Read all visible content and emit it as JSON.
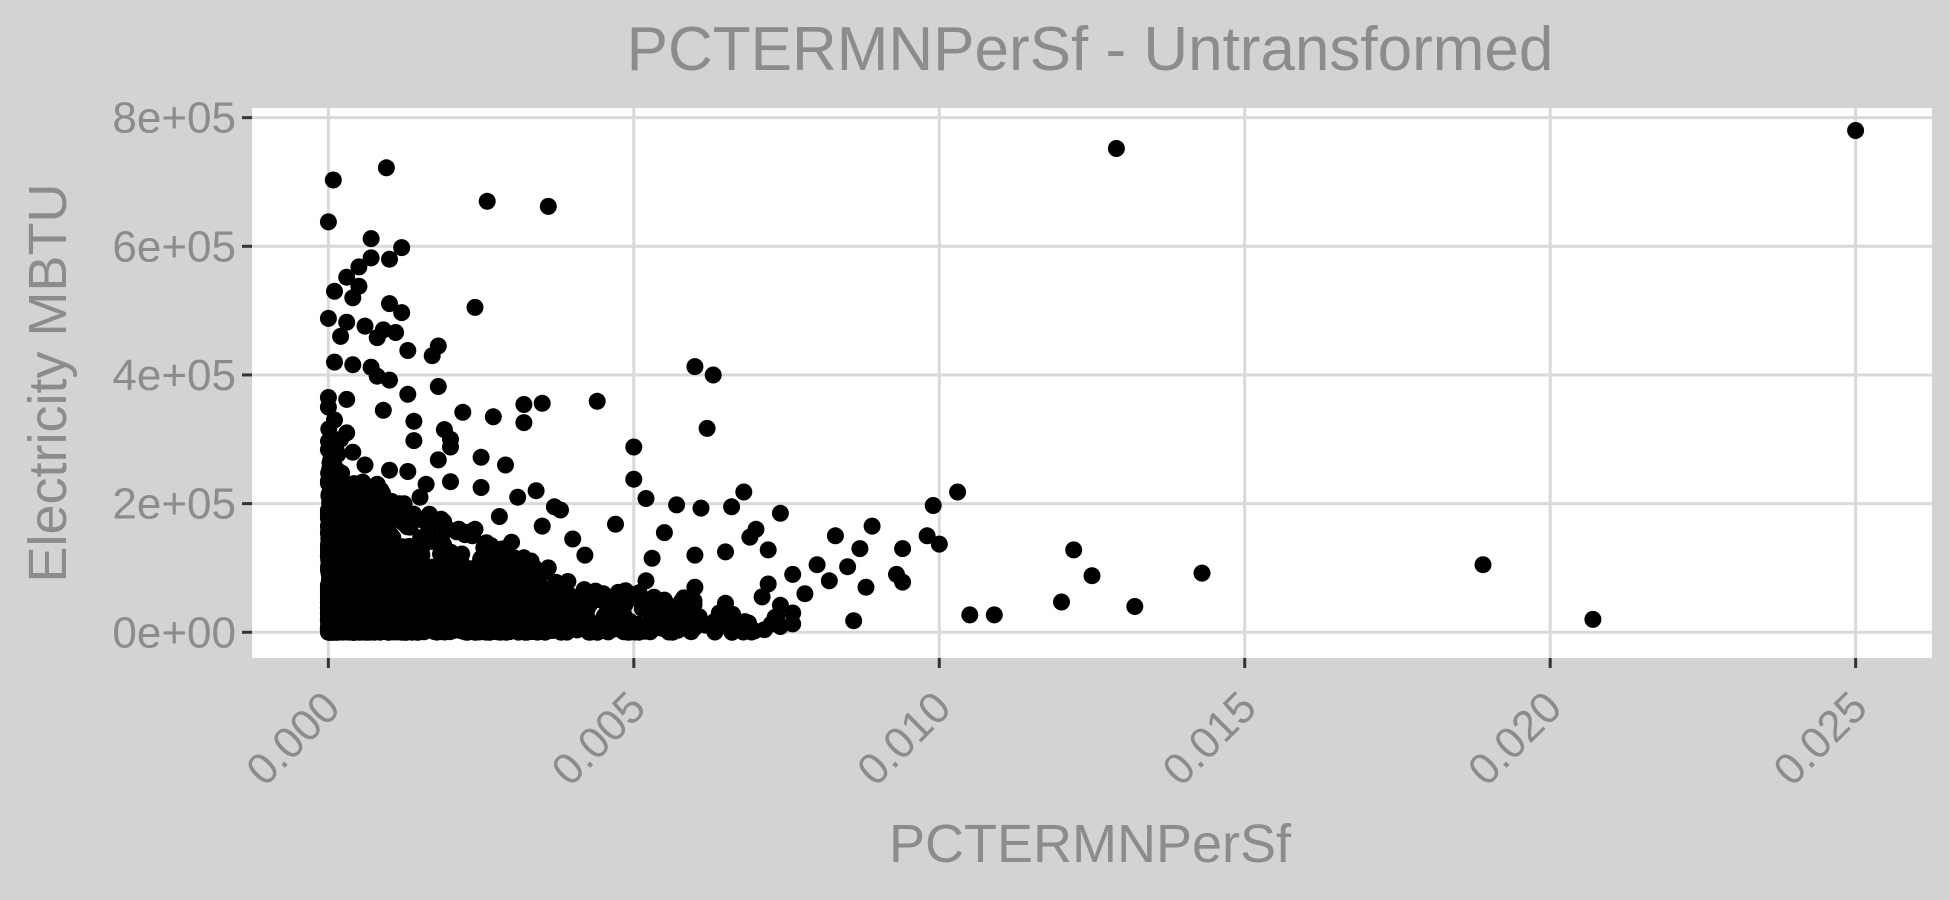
{
  "chart_data": {
    "type": "scatter",
    "title": "PCTERMNPerSf - Untransformed",
    "xlabel": "PCTERMNPerSf",
    "ylabel": "Electricity MBTU",
    "xlim": [
      -0.00125,
      0.02625
    ],
    "ylim": [
      -40000,
      815000
    ],
    "x_ticks": [
      0.0,
      0.005,
      0.01,
      0.015,
      0.02,
      0.025
    ],
    "x_tick_labels": [
      "0.000",
      "0.005",
      "0.010",
      "0.015",
      "0.020",
      "0.025"
    ],
    "y_ticks": [
      0,
      200000,
      400000,
      600000,
      800000
    ],
    "y_tick_labels": [
      "0e+00",
      "2e+05",
      "4e+05",
      "6e+05",
      "8e+05"
    ],
    "grid": true,
    "panel_background": "#ffffff",
    "plot_background": "#d3d3d3",
    "grid_color": "#d9d9d9",
    "point_color": "#000000",
    "points": [
      [
        0.025,
        780000
      ],
      [
        0.0129,
        752000
      ],
      [
        0.00095,
        722000
      ],
      [
        8e-05,
        703000
      ],
      [
        0.0026,
        670000
      ],
      [
        0.0036,
        662000
      ],
      [
        0.0,
        638000
      ],
      [
        0.0007,
        612000
      ],
      [
        0.0012,
        598000
      ],
      [
        0.001,
        580000
      ],
      [
        0.0007,
        582000
      ],
      [
        0.0005,
        568000
      ],
      [
        0.0003,
        552000
      ],
      [
        0.0005,
        538000
      ],
      [
        0.0001,
        530000
      ],
      [
        0.0004,
        520000
      ],
      [
        0.001,
        511000
      ],
      [
        0.0024,
        505000
      ],
      [
        0.0012,
        497000
      ],
      [
        0.0,
        488000
      ],
      [
        0.0003,
        482000
      ],
      [
        0.0006,
        476000
      ],
      [
        0.0009,
        470000
      ],
      [
        0.0011,
        466000
      ],
      [
        0.0002,
        460000
      ],
      [
        0.0008,
        458000
      ],
      [
        0.0018,
        445000
      ],
      [
        0.0013,
        438000
      ],
      [
        0.0017,
        430000
      ],
      [
        0.0001,
        420000
      ],
      [
        0.0004,
        416000
      ],
      [
        0.0007,
        412000
      ],
      [
        0.006,
        413000
      ],
      [
        0.0063,
        400000
      ],
      [
        0.0008,
        398000
      ],
      [
        0.001,
        392000
      ],
      [
        0.0018,
        382000
      ],
      [
        0.0013,
        370000
      ],
      [
        0.0,
        365000
      ],
      [
        0.0003,
        362000
      ],
      [
        0.0044,
        359000
      ],
      [
        0.0035,
        356000
      ],
      [
        0.0032,
        354000
      ],
      [
        0.0022,
        342000
      ],
      [
        0.0027,
        335000
      ],
      [
        0.0014,
        328000
      ],
      [
        0.0032,
        326000
      ],
      [
        0.0062,
        317000
      ],
      [
        0.0019,
        315000
      ],
      [
        0.002,
        300000
      ],
      [
        0.0014,
        298000
      ],
      [
        0.005,
        288000
      ],
      [
        0.002,
        288000
      ],
      [
        0.0025,
        272000
      ],
      [
        0.0018,
        268000
      ],
      [
        0.0029,
        260000
      ],
      [
        0.001,
        252000
      ],
      [
        0.0013,
        250000
      ],
      [
        0.005,
        238000
      ],
      [
        0.0002,
        240000
      ],
      [
        0.002,
        234000
      ],
      [
        0.0025,
        225000
      ],
      [
        0.0068,
        218000
      ],
      [
        0.0103,
        218000
      ],
      [
        0.0034,
        220000
      ],
      [
        0.0031,
        210000
      ],
      [
        0.0052,
        208000
      ],
      [
        0.0057,
        198000
      ],
      [
        0.0099,
        197000
      ],
      [
        0.0061,
        193000
      ],
      [
        0.0066,
        195000
      ],
      [
        0.0037,
        195000
      ],
      [
        0.0038,
        190000
      ],
      [
        0.0074,
        185000
      ],
      [
        0.0047,
        168000
      ],
      [
        0.0089,
        165000
      ],
      [
        0.007,
        160000
      ],
      [
        0.0055,
        155000
      ],
      [
        0.0083,
        150000
      ],
      [
        0.0098,
        150000
      ],
      [
        0.0069,
        148000
      ],
      [
        0.004,
        145000
      ],
      [
        0.01,
        137000
      ],
      [
        0.0065,
        125000
      ],
      [
        0.0094,
        130000
      ],
      [
        0.0122,
        128000
      ],
      [
        0.0087,
        130000
      ],
      [
        0.0072,
        128000
      ],
      [
        0.006,
        120000
      ],
      [
        0.0053,
        115000
      ],
      [
        0.0189,
        105000
      ],
      [
        0.008,
        105000
      ],
      [
        0.0085,
        102000
      ],
      [
        0.0076,
        90000
      ],
      [
        0.0125,
        88000
      ],
      [
        0.0143,
        92000
      ],
      [
        0.0093,
        90000
      ],
      [
        0.0094,
        78000
      ],
      [
        0.0082,
        80000
      ],
      [
        0.0088,
        70000
      ],
      [
        0.0072,
        75000
      ],
      [
        0.0078,
        60000
      ],
      [
        0.0071,
        55000
      ],
      [
        0.0065,
        45000
      ],
      [
        0.012,
        47000
      ],
      [
        0.0074,
        42000
      ],
      [
        0.0076,
        30000
      ],
      [
        0.0132,
        40000
      ],
      [
        0.0105,
        27000
      ],
      [
        0.0109,
        27000
      ],
      [
        0.0086,
        18000
      ],
      [
        0.0207,
        20000
      ],
      [
        0.0076,
        13000
      ],
      [
        0.0074,
        9000
      ],
      [
        0.0058,
        25000
      ],
      [
        0.0045,
        60000
      ],
      [
        0.0052,
        80000
      ],
      [
        0.0042,
        120000
      ],
      [
        0.0036,
        100000
      ],
      [
        0.0055,
        50000
      ],
      [
        0.006,
        70000
      ],
      [
        0.0064,
        30000
      ],
      [
        0.0048,
        20000
      ],
      [
        0.0056,
        15000
      ],
      [
        0.0039,
        40000
      ],
      [
        0.0035,
        165000
      ],
      [
        0.003,
        140000
      ],
      [
        0.0028,
        180000
      ],
      [
        0.0024,
        160000
      ],
      [
        0.0015,
        210000
      ],
      [
        0.0012,
        190000
      ],
      [
        0.0008,
        230000
      ],
      [
        0.0006,
        260000
      ],
      [
        0.0004,
        280000
      ],
      [
        0.0002,
        300000
      ],
      [
        0.0,
        350000
      ],
      [
        0.0001,
        330000
      ],
      [
        0.0003,
        310000
      ],
      [
        0.0009,
        345000
      ],
      [
        0.0016,
        230000
      ]
    ],
    "dense_cloud": [
      {
        "x_max": 0.0035,
        "y_max": 260000,
        "count": 900
      },
      {
        "x_max": 0.006,
        "y_max": 130000,
        "count": 600
      },
      {
        "x_max": 0.001,
        "y_max": 320000,
        "count": 400
      },
      {
        "x_max": 0.0075,
        "y_max": 60000,
        "count": 200
      }
    ]
  }
}
